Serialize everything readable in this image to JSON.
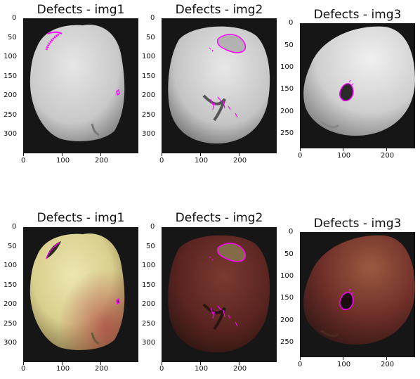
{
  "panels": [
    {
      "title": "Defects - img1",
      "xticks": [
        "0",
        "100",
        "200"
      ],
      "yticks": [
        "0",
        "50",
        "100",
        "150",
        "200",
        "250",
        "300"
      ]
    },
    {
      "title": "Defects - img2",
      "xticks": [
        "0",
        "100",
        "200"
      ],
      "yticks": [
        "0",
        "50",
        "100",
        "150",
        "200",
        "250",
        "300"
      ]
    },
    {
      "title": "Defects - img3",
      "xticks": [
        "0",
        "100",
        "200"
      ],
      "yticks": [
        "0",
        "50",
        "100",
        "150",
        "200",
        "250"
      ]
    },
    {
      "title": "Defects - img1",
      "xticks": [
        "0",
        "100",
        "200"
      ],
      "yticks": [
        "0",
        "50",
        "100",
        "150",
        "200",
        "250",
        "300"
      ]
    },
    {
      "title": "Defects - img2",
      "xticks": [
        "0",
        "100",
        "200"
      ],
      "yticks": [
        "0",
        "50",
        "100",
        "150",
        "200",
        "250",
        "300"
      ]
    },
    {
      "title": "Defects - img3",
      "xticks": [
        "0",
        "100",
        "200"
      ],
      "yticks": [
        "0",
        "50",
        "100",
        "150",
        "200",
        "250"
      ]
    }
  ],
  "colors": {
    "defect_outline": "#ff00ff",
    "background": "#161616"
  }
}
